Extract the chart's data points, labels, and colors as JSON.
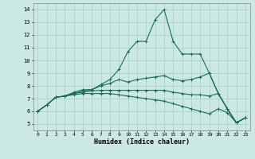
{
  "xlabel": "Humidex (Indice chaleur)",
  "bg_color": "#cce8e4",
  "grid_color": "#aad4cc",
  "line_color": "#1a6b5a",
  "xlim": [
    -0.5,
    23.5
  ],
  "ylim": [
    4.5,
    14.5
  ],
  "xticks": [
    0,
    1,
    2,
    3,
    4,
    5,
    6,
    7,
    8,
    9,
    10,
    11,
    12,
    13,
    14,
    15,
    16,
    17,
    18,
    19,
    20,
    21,
    22,
    23
  ],
  "yticks": [
    5,
    6,
    7,
    8,
    9,
    10,
    11,
    12,
    13,
    14
  ],
  "lines": [
    [
      0,
      1,
      2,
      3,
      4,
      5,
      6,
      7,
      8,
      9,
      10,
      11,
      12,
      13,
      14,
      15,
      16,
      17,
      18,
      19,
      20,
      21,
      22,
      23
    ],
    [
      6.0,
      6.5,
      7.1,
      7.2,
      7.5,
      7.7,
      7.7,
      8.1,
      8.5,
      9.3,
      10.7,
      11.5,
      11.5,
      13.2,
      14.0,
      11.5,
      10.5,
      10.5,
      10.5,
      9.0,
      7.4,
      6.2,
      5.1,
      5.5
    ],
    [
      6.0,
      6.5,
      7.1,
      7.2,
      7.4,
      7.6,
      7.7,
      8.0,
      8.2,
      8.5,
      8.3,
      8.5,
      8.6,
      8.7,
      8.8,
      8.5,
      8.4,
      8.5,
      8.7,
      9.0,
      7.4,
      6.2,
      5.1,
      5.5
    ],
    [
      6.0,
      6.5,
      7.1,
      7.2,
      7.4,
      7.5,
      7.6,
      7.65,
      7.65,
      7.65,
      7.65,
      7.65,
      7.65,
      7.65,
      7.65,
      7.5,
      7.4,
      7.3,
      7.3,
      7.2,
      7.4,
      6.2,
      5.1,
      5.5
    ],
    [
      6.0,
      6.5,
      7.1,
      7.2,
      7.3,
      7.4,
      7.4,
      7.4,
      7.4,
      7.3,
      7.2,
      7.1,
      7.0,
      6.9,
      6.8,
      6.6,
      6.4,
      6.2,
      6.0,
      5.8,
      6.2,
      5.9,
      5.1,
      5.5
    ]
  ]
}
